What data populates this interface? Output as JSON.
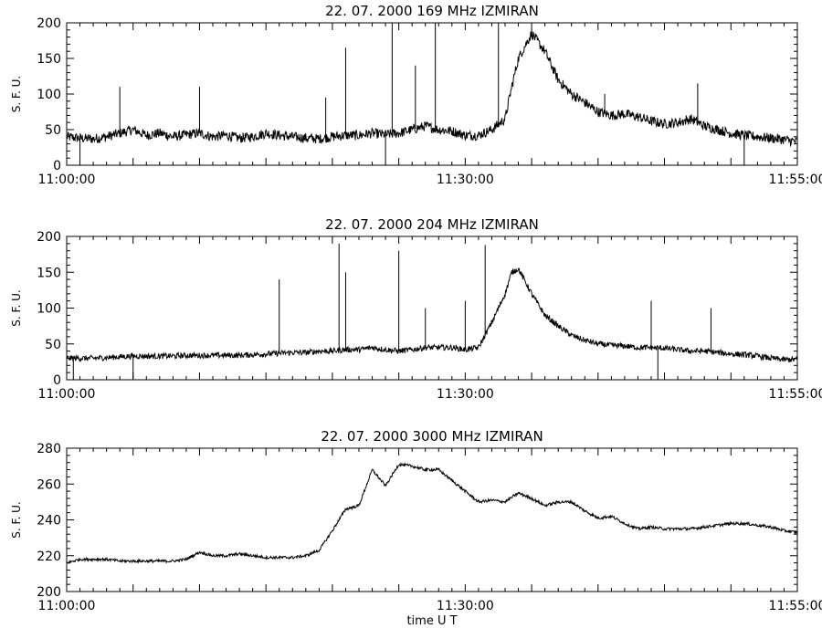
{
  "figure": {
    "xlabel": "time  U T",
    "line_color": "#000000",
    "background": "#ffffff"
  },
  "chart_data": [
    {
      "type": "line",
      "title": "22.  07.  2000    169  MHz     IZMIRAN",
      "ylabel": "S.  F.  U.",
      "xlabel": "",
      "xlim": [
        "11:00:00",
        "11:55:00"
      ],
      "ylim": [
        0,
        200
      ],
      "x_ticks": [
        "11:00:00",
        "11:30:00",
        "11:55:00"
      ],
      "y_ticks": [
        0,
        50,
        100,
        150,
        200
      ],
      "series": [
        {
          "x": [
            "11:00:00",
            "11:01:00",
            "11:02:00",
            "11:03:00",
            "11:04:00",
            "11:05:00",
            "11:06:00",
            "11:07:00",
            "11:08:00",
            "11:09:00",
            "11:10:00",
            "11:11:00",
            "11:12:00",
            "11:13:00",
            "11:14:00",
            "11:15:00",
            "11:16:00",
            "11:17:00",
            "11:18:00",
            "11:19:00",
            "11:20:00",
            "11:21:00",
            "11:22:00",
            "11:23:00",
            "11:24:00",
            "11:25:00",
            "11:26:00",
            "11:27:00",
            "11:28:00",
            "11:29:00",
            "11:30:00",
            "11:31:00",
            "11:32:00",
            "11:33:00",
            "11:33:30",
            "11:34:00",
            "11:35:00",
            "11:36:00",
            "11:37:00",
            "11:38:00",
            "11:39:00",
            "11:40:00",
            "11:41:00",
            "11:42:00",
            "11:43:00",
            "11:44:00",
            "11:45:00",
            "11:46:00",
            "11:47:00",
            "11:48:00",
            "11:49:00",
            "11:50:00",
            "11:51:00",
            "11:52:00",
            "11:53:00",
            "11:54:00",
            "11:55:00"
          ],
          "values": [
            40,
            38,
            37,
            40,
            45,
            50,
            42,
            45,
            40,
            43,
            45,
            40,
            42,
            38,
            40,
            45,
            42,
            40,
            38,
            37,
            40,
            42,
            42,
            45,
            43,
            45,
            50,
            55,
            50,
            48,
            42,
            42,
            50,
            65,
            110,
            150,
            185,
            160,
            120,
            100,
            88,
            75,
            70,
            72,
            68,
            62,
            58,
            60,
            65,
            55,
            50,
            45,
            42,
            40,
            38,
            36,
            33
          ]
        }
      ],
      "spikes": [
        {
          "x": "11:24:30",
          "y": 205
        },
        {
          "x": "11:27:45",
          "y": 200
        },
        {
          "x": "11:32:30",
          "y": 200
        },
        {
          "x": "11:21:00",
          "y": 165
        },
        {
          "x": "11:26:15",
          "y": 140
        },
        {
          "x": "11:04:00",
          "y": 110
        },
        {
          "x": "11:10:00",
          "y": 110
        },
        {
          "x": "11:19:30",
          "y": 95
        },
        {
          "x": "11:47:30",
          "y": 115
        },
        {
          "x": "11:40:30",
          "y": 100
        },
        {
          "x": "11:01:00",
          "y": 5
        },
        {
          "x": "11:24:00",
          "y": 5
        },
        {
          "x": "11:51:00",
          "y": 5
        }
      ]
    },
    {
      "type": "line",
      "title": "22.  07.  2000    204  MHz     IZMIRAN",
      "ylabel": "S.  F.  U.",
      "xlabel": "",
      "xlim": [
        "11:00:00",
        "11:55:00"
      ],
      "ylim": [
        0,
        200
      ],
      "x_ticks": [
        "11:00:00",
        "11:30:00",
        "11:55:00"
      ],
      "y_ticks": [
        0,
        50,
        100,
        150,
        200
      ],
      "series": [
        {
          "x": [
            "11:00:00",
            "11:01:00",
            "11:02:00",
            "11:03:00",
            "11:04:00",
            "11:05:00",
            "11:06:00",
            "11:07:00",
            "11:08:00",
            "11:09:00",
            "11:10:00",
            "11:11:00",
            "11:12:00",
            "11:13:00",
            "11:14:00",
            "11:15:00",
            "11:16:00",
            "11:17:00",
            "11:18:00",
            "11:19:00",
            "11:20:00",
            "11:21:00",
            "11:22:00",
            "11:23:00",
            "11:24:00",
            "11:25:00",
            "11:26:00",
            "11:27:00",
            "11:28:00",
            "11:29:00",
            "11:30:00",
            "11:31:00",
            "11:32:00",
            "11:33:00",
            "11:33:30",
            "11:34:00",
            "11:35:00",
            "11:36:00",
            "11:37:00",
            "11:38:00",
            "11:39:00",
            "11:40:00",
            "11:41:00",
            "11:42:00",
            "11:43:00",
            "11:44:00",
            "11:45:00",
            "11:46:00",
            "11:47:00",
            "11:48:00",
            "11:49:00",
            "11:50:00",
            "11:51:00",
            "11:52:00",
            "11:53:00",
            "11:54:00",
            "11:55:00"
          ],
          "values": [
            30,
            30,
            30,
            31,
            32,
            33,
            33,
            33,
            33,
            34,
            34,
            34,
            34,
            34,
            35,
            36,
            37,
            38,
            38,
            40,
            40,
            42,
            42,
            45,
            42,
            40,
            42,
            45,
            45,
            45,
            42,
            45,
            80,
            120,
            150,
            155,
            120,
            90,
            75,
            62,
            55,
            50,
            48,
            47,
            45,
            45,
            44,
            42,
            40,
            40,
            38,
            36,
            35,
            33,
            30,
            28,
            28
          ]
        }
      ],
      "spikes": [
        {
          "x": "11:20:30",
          "y": 190
        },
        {
          "x": "11:31:30",
          "y": 188
        },
        {
          "x": "11:25:00",
          "y": 180
        },
        {
          "x": "11:21:00",
          "y": 150
        },
        {
          "x": "11:16:00",
          "y": 140
        },
        {
          "x": "11:30:00",
          "y": 110
        },
        {
          "x": "11:44:00",
          "y": 110
        },
        {
          "x": "11:27:00",
          "y": 100
        },
        {
          "x": "11:48:30",
          "y": 100
        },
        {
          "x": "11:00:30",
          "y": 0
        },
        {
          "x": "11:05:00",
          "y": 0
        },
        {
          "x": "11:44:30",
          "y": 0
        }
      ]
    },
    {
      "type": "line",
      "title": "22.  07.  2000    3000  MHz     IZMIRAN",
      "ylabel": "S.  F.  U.",
      "xlabel": "time  U T",
      "xlim": [
        "11:00:00",
        "11:55:00"
      ],
      "ylim": [
        200,
        280
      ],
      "x_ticks": [
        "11:00:00",
        "11:30:00",
        "11:55:00"
      ],
      "y_ticks": [
        200,
        220,
        240,
        260,
        280
      ],
      "series": [
        {
          "x": [
            "11:00:00",
            "11:01:00",
            "11:02:00",
            "11:03:00",
            "11:04:00",
            "11:05:00",
            "11:06:00",
            "11:07:00",
            "11:08:00",
            "11:09:00",
            "11:10:00",
            "11:11:00",
            "11:12:00",
            "11:13:00",
            "11:14:00",
            "11:15:00",
            "11:16:00",
            "11:17:00",
            "11:18:00",
            "11:19:00",
            "11:20:00",
            "11:21:00",
            "11:22:00",
            "11:23:00",
            "11:24:00",
            "11:25:00",
            "11:26:00",
            "11:27:00",
            "11:28:00",
            "11:29:00",
            "11:30:00",
            "11:31:00",
            "11:32:00",
            "11:33:00",
            "11:34:00",
            "11:35:00",
            "11:36:00",
            "11:37:00",
            "11:38:00",
            "11:39:00",
            "11:40:00",
            "11:41:00",
            "11:42:00",
            "11:43:00",
            "11:44:00",
            "11:45:00",
            "11:46:00",
            "11:47:00",
            "11:48:00",
            "11:49:00",
            "11:50:00",
            "11:51:00",
            "11:52:00",
            "11:53:00",
            "11:54:00",
            "11:55:00"
          ],
          "values": [
            216,
            218,
            218,
            218,
            217,
            217,
            217,
            217,
            217,
            218,
            222,
            220,
            220,
            221,
            220,
            219,
            219,
            219,
            220,
            223,
            234,
            246,
            248,
            268,
            259,
            271,
            270,
            268,
            268,
            262,
            256,
            250,
            251,
            250,
            255,
            252,
            248,
            250,
            250,
            245,
            241,
            242,
            238,
            235,
            236,
            235,
            235,
            235,
            236,
            237,
            238,
            238,
            237,
            236,
            234,
            233
          ]
        }
      ]
    }
  ]
}
